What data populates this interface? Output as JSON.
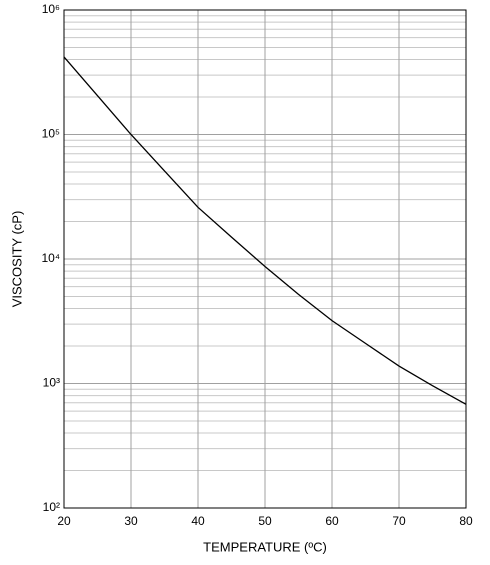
{
  "chart_data": {
    "type": "line",
    "x_label": "TEMPERATURE (ºC)",
    "y_label": "VISCOSITY (cP)",
    "y_log": true,
    "grid": true,
    "xlim": [
      20,
      80
    ],
    "xticks": [
      20,
      30,
      40,
      50,
      60,
      70,
      80
    ],
    "ylim": [
      100,
      1000000
    ],
    "yticks": [
      {
        "value": 100,
        "label": "10²"
      },
      {
        "value": 1000,
        "label": "10³"
      },
      {
        "value": 10000,
        "label": "10⁴"
      },
      {
        "value": 100000,
        "label": "10⁵"
      },
      {
        "value": 1000000,
        "label": "10⁶"
      }
    ],
    "yminor": [
      200,
      300,
      400,
      500,
      600,
      700,
      800,
      900,
      2000,
      3000,
      4000,
      5000,
      6000,
      7000,
      8000,
      9000,
      20000,
      30000,
      40000,
      50000,
      60000,
      70000,
      80000,
      90000,
      200000,
      300000,
      400000,
      500000,
      600000,
      700000,
      800000,
      900000
    ],
    "x": [
      20,
      25,
      30,
      35,
      40,
      45,
      50,
      55,
      60,
      65,
      70,
      75,
      80
    ],
    "series": [
      {
        "color": "#000000",
        "values": [
          420000,
          205000,
          100000,
          51000,
          26000,
          15000,
          8700,
          5200,
          3200,
          2100,
          1380,
          960,
          680
        ]
      }
    ]
  }
}
